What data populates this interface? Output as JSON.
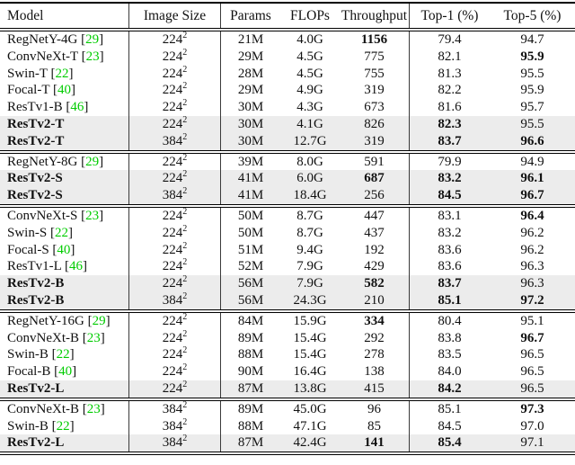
{
  "colors": {
    "cite_green": "#00CC00",
    "highlight": "#ECECEC",
    "rule": "#000000"
  },
  "table": {
    "columns": [
      "Model",
      "Image Size",
      "Params",
      "FLOPs",
      "Throughput",
      "Top-1 (%)",
      "Top-5 (%)"
    ],
    "cite_open": "[",
    "cite_close": "]",
    "size_exp": "2",
    "sections": [
      {
        "rows": [
          {
            "model": "RegNetY-4G",
            "cite": "29",
            "size": "224",
            "params": "21M",
            "flops": "4.0G",
            "tp": "1156",
            "top1": "79.4",
            "top5": "94.7",
            "hl": false,
            "bm": false,
            "btp": true,
            "bt1": false,
            "bt5": false
          },
          {
            "model": "ConvNeXt-T",
            "cite": "23",
            "size": "224",
            "params": "29M",
            "flops": "4.5G",
            "tp": "775",
            "top1": "82.1",
            "top5": "95.9",
            "hl": false,
            "bm": false,
            "btp": false,
            "bt1": false,
            "bt5": true
          },
          {
            "model": "Swin-T",
            "cite": "22",
            "size": "224",
            "params": "28M",
            "flops": "4.5G",
            "tp": "755",
            "top1": "81.3",
            "top5": "95.5",
            "hl": false,
            "bm": false,
            "btp": false,
            "bt1": false,
            "bt5": false
          },
          {
            "model": "Focal-T",
            "cite": "40",
            "size": "224",
            "params": "29M",
            "flops": "4.9G",
            "tp": "319",
            "top1": "82.2",
            "top5": "95.9",
            "hl": false,
            "bm": false,
            "btp": false,
            "bt1": false,
            "bt5": false
          },
          {
            "model": "ResTv1-B",
            "cite": "46",
            "size": "224",
            "params": "30M",
            "flops": "4.3G",
            "tp": "673",
            "top1": "81.6",
            "top5": "95.7",
            "hl": false,
            "bm": false,
            "btp": false,
            "bt1": false,
            "bt5": false
          },
          {
            "model": "ResTv2-T",
            "cite": "",
            "size": "224",
            "params": "30M",
            "flops": "4.1G",
            "tp": "826",
            "top1": "82.3",
            "top5": "95.5",
            "hl": true,
            "bm": true,
            "btp": false,
            "bt1": true,
            "bt5": false
          },
          {
            "model": "ResTv2-T",
            "cite": "",
            "size": "384",
            "params": "30M",
            "flops": "12.7G",
            "tp": "319",
            "top1": "83.7",
            "top5": "96.6",
            "hl": true,
            "bm": true,
            "btp": false,
            "bt1": true,
            "bt5": true
          }
        ]
      },
      {
        "rows": [
          {
            "model": "RegNetY-8G",
            "cite": "29",
            "size": "224",
            "params": "39M",
            "flops": "8.0G",
            "tp": "591",
            "top1": "79.9",
            "top5": "94.9",
            "hl": false,
            "bm": false,
            "btp": false,
            "bt1": false,
            "bt5": false
          },
          {
            "model": "ResTv2-S",
            "cite": "",
            "size": "224",
            "params": "41M",
            "flops": "6.0G",
            "tp": "687",
            "top1": "83.2",
            "top5": "96.1",
            "hl": true,
            "bm": true,
            "btp": true,
            "bt1": true,
            "bt5": true
          },
          {
            "model": "ResTv2-S",
            "cite": "",
            "size": "384",
            "params": "41M",
            "flops": "18.4G",
            "tp": "256",
            "top1": "84.5",
            "top5": "96.7",
            "hl": true,
            "bm": true,
            "btp": false,
            "bt1": true,
            "bt5": true
          }
        ]
      },
      {
        "rows": [
          {
            "model": "ConvNeXt-S",
            "cite": "23",
            "size": "224",
            "params": "50M",
            "flops": "8.7G",
            "tp": "447",
            "top1": "83.1",
            "top5": "96.4",
            "hl": false,
            "bm": false,
            "btp": false,
            "bt1": false,
            "bt5": true
          },
          {
            "model": "Swin-S",
            "cite": "22",
            "size": "224",
            "params": "50M",
            "flops": "8.7G",
            "tp": "437",
            "top1": "83.2",
            "top5": "96.2",
            "hl": false,
            "bm": false,
            "btp": false,
            "bt1": false,
            "bt5": false
          },
          {
            "model": "Focal-S",
            "cite": "40",
            "size": "224",
            "params": "51M",
            "flops": "9.4G",
            "tp": "192",
            "top1": "83.6",
            "top5": "96.2",
            "hl": false,
            "bm": false,
            "btp": false,
            "bt1": false,
            "bt5": false
          },
          {
            "model": "ResTv1-L",
            "cite": "46",
            "size": "224",
            "params": "52M",
            "flops": "7.9G",
            "tp": "429",
            "top1": "83.6",
            "top5": "96.3",
            "hl": false,
            "bm": false,
            "btp": false,
            "bt1": false,
            "bt5": false
          },
          {
            "model": "ResTv2-B",
            "cite": "",
            "size": "224",
            "params": "56M",
            "flops": "7.9G",
            "tp": "582",
            "top1": "83.7",
            "top5": "96.3",
            "hl": true,
            "bm": true,
            "btp": true,
            "bt1": true,
            "bt5": false
          },
          {
            "model": "ResTv2-B",
            "cite": "",
            "size": "384",
            "params": "56M",
            "flops": "24.3G",
            "tp": "210",
            "top1": "85.1",
            "top5": "97.2",
            "hl": true,
            "bm": true,
            "btp": false,
            "bt1": true,
            "bt5": true
          }
        ]
      },
      {
        "rows": [
          {
            "model": "RegNetY-16G",
            "cite": "29",
            "size": "224",
            "params": "84M",
            "flops": "15.9G",
            "tp": "334",
            "top1": "80.4",
            "top5": "95.1",
            "hl": false,
            "bm": false,
            "btp": true,
            "bt1": false,
            "bt5": false
          },
          {
            "model": "ConvNeXt-B",
            "cite": "23",
            "size": "224",
            "params": "89M",
            "flops": "15.4G",
            "tp": "292",
            "top1": "83.8",
            "top5": "96.7",
            "hl": false,
            "bm": false,
            "btp": false,
            "bt1": false,
            "bt5": true
          },
          {
            "model": "Swin-B",
            "cite": "22",
            "size": "224",
            "params": "88M",
            "flops": "15.4G",
            "tp": "278",
            "top1": "83.5",
            "top5": "96.5",
            "hl": false,
            "bm": false,
            "btp": false,
            "bt1": false,
            "bt5": false
          },
          {
            "model": "Focal-B",
            "cite": "40",
            "size": "224",
            "params": "90M",
            "flops": "16.4G",
            "tp": "138",
            "top1": "84.0",
            "top5": "96.5",
            "hl": false,
            "bm": false,
            "btp": false,
            "bt1": false,
            "bt5": false
          },
          {
            "model": "ResTv2-L",
            "cite": "",
            "size": "224",
            "params": "87M",
            "flops": "13.8G",
            "tp": "415",
            "top1": "84.2",
            "top5": "96.5",
            "hl": true,
            "bm": true,
            "btp": false,
            "bt1": true,
            "bt5": false
          }
        ]
      },
      {
        "rows": [
          {
            "model": "ConvNeXt-B",
            "cite": "23",
            "size": "384",
            "params": "89M",
            "flops": "45.0G",
            "tp": "96",
            "top1": "85.1",
            "top5": "97.3",
            "hl": false,
            "bm": false,
            "btp": false,
            "bt1": false,
            "bt5": true
          },
          {
            "model": "Swin-B",
            "cite": "22",
            "size": "384",
            "params": "88M",
            "flops": "47.1G",
            "tp": "85",
            "top1": "84.5",
            "top5": "97.0",
            "hl": false,
            "bm": false,
            "btp": false,
            "bt1": false,
            "bt5": false
          },
          {
            "model": "ResTv2-L",
            "cite": "",
            "size": "384",
            "params": "87M",
            "flops": "42.4G",
            "tp": "141",
            "top1": "85.4",
            "top5": "97.1",
            "hl": true,
            "bm": true,
            "btp": true,
            "bt1": true,
            "bt5": false
          }
        ]
      }
    ]
  }
}
